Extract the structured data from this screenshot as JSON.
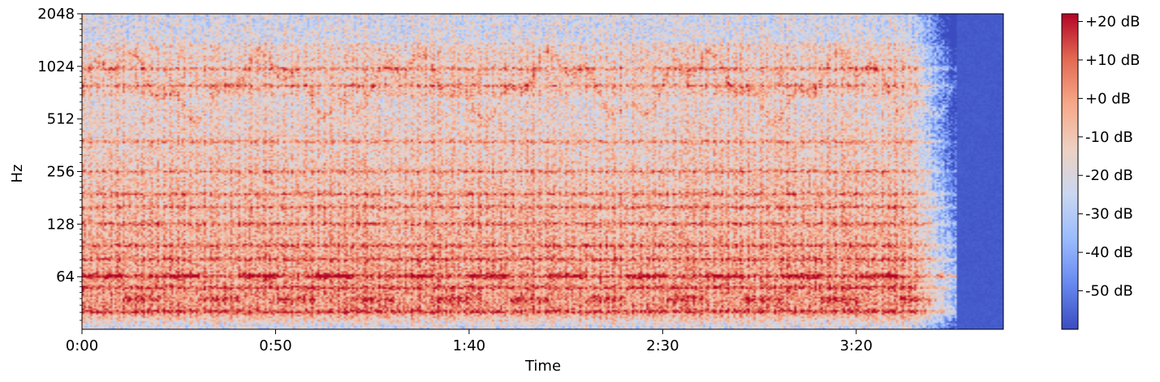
{
  "chart_data": {
    "type": "heatmap",
    "title": "",
    "xlabel": "Time",
    "ylabel": "Hz",
    "y_scale": "log2",
    "x_range_seconds": [
      0,
      238
    ],
    "y_range_hz": [
      32,
      2048
    ],
    "x_ticks": [
      {
        "value": 0,
        "label": "0:00"
      },
      {
        "value": 50,
        "label": "0:50"
      },
      {
        "value": 100,
        "label": "1:40"
      },
      {
        "value": 150,
        "label": "2:30"
      },
      {
        "value": 200,
        "label": "3:20"
      }
    ],
    "y_ticks": [
      {
        "value": 64,
        "label": "64"
      },
      {
        "value": 128,
        "label": "128"
      },
      {
        "value": 256,
        "label": "256"
      },
      {
        "value": 512,
        "label": "512"
      },
      {
        "value": 1024,
        "label": "1024"
      },
      {
        "value": 2048,
        "label": "2048"
      }
    ],
    "colorbar": {
      "colormap": "coolwarm",
      "range_db": [
        -60,
        22
      ],
      "ticks": [
        {
          "value": 20,
          "label": "+20 dB"
        },
        {
          "value": 10,
          "label": "+10 dB"
        },
        {
          "value": 0,
          "label": "+0 dB"
        },
        {
          "value": -10,
          "label": "-10 dB"
        },
        {
          "value": -20,
          "label": "-20 dB"
        },
        {
          "value": -30,
          "label": "-30 dB"
        },
        {
          "value": -40,
          "label": "-40 dB"
        },
        {
          "value": -50,
          "label": "-50 dB"
        }
      ],
      "colors": [
        "#3b4cc0",
        "#6788ee",
        "#9abbff",
        "#c9d7f0",
        "#edd1c2",
        "#f7a889",
        "#e26952",
        "#b40426"
      ]
    },
    "energy_profile": {
      "signal_end_seconds": 226,
      "fade_start_seconds": 210,
      "strong_bands_hz": [
        40,
        55,
        64,
        80,
        96,
        128,
        160,
        190,
        256,
        380,
        800,
        1000
      ],
      "peak_band_hz": [
        700,
        1400
      ],
      "low_floor_hz": [
        32,
        38
      ]
    },
    "grid": false,
    "legend": "none"
  }
}
